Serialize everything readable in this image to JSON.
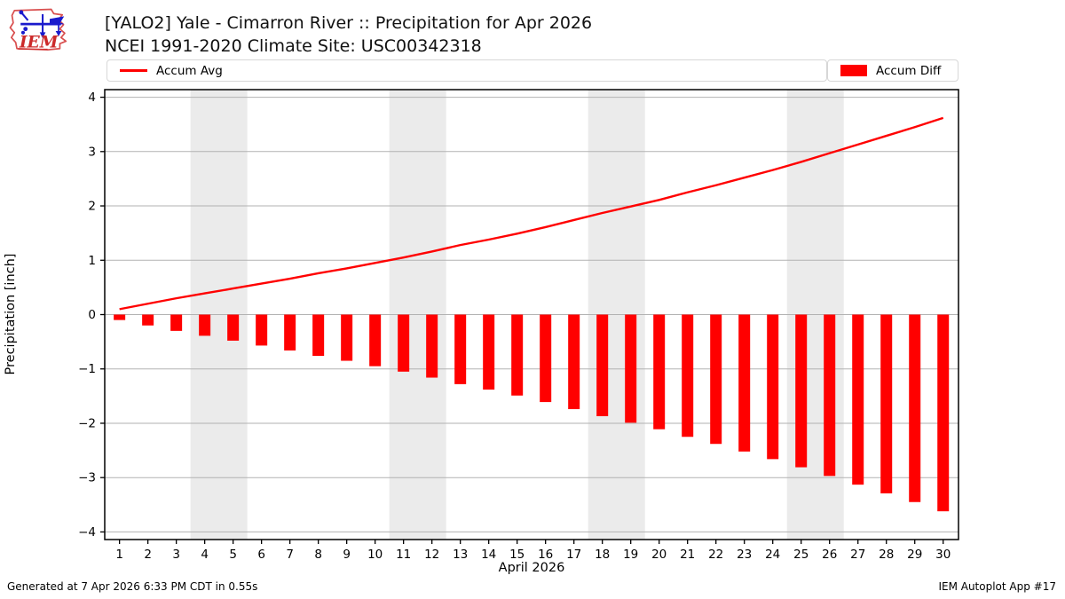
{
  "header": {
    "title_line1": "[YALO2] Yale - Cimarron River :: Precipitation for Apr 2026",
    "title_line2": "NCEI 1991-2020 Climate Site: USC00342318",
    "logo_text": "IEM"
  },
  "legend": {
    "avg_label": "Accum Avg",
    "diff_label": "Accum Diff"
  },
  "footer": {
    "left": "Generated at 7 Apr 2026 6:33 PM CDT in 0.55s",
    "right": "IEM Autoplot App #17"
  },
  "chart_data": {
    "type": "combo",
    "title": "[YALO2] Yale - Cimarron River :: Precipitation for Apr 2026",
    "subtitle": "NCEI 1991-2020 Climate Site: USC00342318",
    "xlabel": "April 2026",
    "ylabel": "Precipitation [inch]",
    "x": [
      1,
      2,
      3,
      4,
      5,
      6,
      7,
      8,
      9,
      10,
      11,
      12,
      13,
      14,
      15,
      16,
      17,
      18,
      19,
      20,
      21,
      22,
      23,
      24,
      25,
      26,
      27,
      28,
      29,
      30
    ],
    "series": [
      {
        "name": "Accum Avg",
        "type": "line",
        "color": "#ff0000",
        "values": [
          0.1,
          0.2,
          0.3,
          0.39,
          0.48,
          0.57,
          0.66,
          0.76,
          0.85,
          0.95,
          1.05,
          1.16,
          1.28,
          1.38,
          1.49,
          1.61,
          1.74,
          1.87,
          1.99,
          2.11,
          2.25,
          2.38,
          2.52,
          2.66,
          2.81,
          2.97,
          3.13,
          3.29,
          3.45,
          3.62
        ]
      },
      {
        "name": "Accum Diff",
        "type": "bar",
        "color": "#ff0000",
        "values": [
          -0.1,
          -0.2,
          -0.3,
          -0.39,
          -0.48,
          -0.57,
          -0.66,
          -0.76,
          -0.85,
          -0.95,
          -1.05,
          -1.16,
          -1.28,
          -1.38,
          -1.49,
          -1.61,
          -1.74,
          -1.87,
          -1.99,
          -2.11,
          -2.25,
          -2.38,
          -2.52,
          -2.66,
          -2.81,
          -2.97,
          -3.13,
          -3.29,
          -3.45,
          -3.62
        ]
      }
    ],
    "ylim": [
      -4.14,
      4.14
    ],
    "yticks": [
      -4,
      -3,
      -2,
      -1,
      0,
      1,
      2,
      3,
      4
    ],
    "grid": "horizontal",
    "grid_color": "#b2b2b2",
    "weekend_bands": [
      [
        3.5,
        5.5
      ],
      [
        10.5,
        12.5
      ],
      [
        17.5,
        19.5
      ],
      [
        24.5,
        26.5
      ]
    ],
    "band_color": "#ebebeb",
    "legend_position": "top-row: Accum Avg left, Accum Diff right",
    "accent_color": "#ff0000"
  }
}
